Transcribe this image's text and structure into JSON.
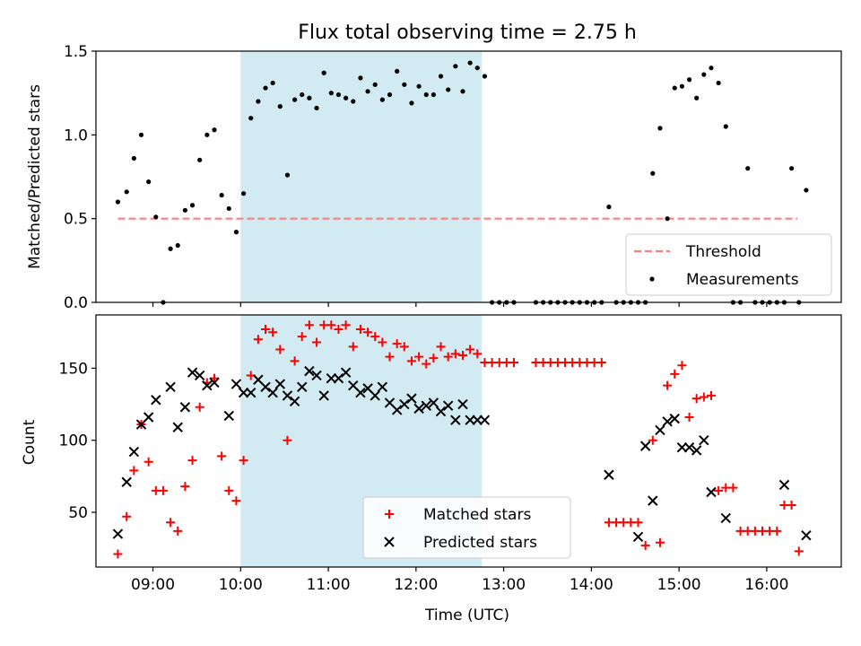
{
  "chart_data": [
    {
      "type": "scatter",
      "title": "Flux total observing time = 2.75 h",
      "ylabel": "Matched/Predicted stars",
      "xlabel": "",
      "xlim": [
        "08:21",
        "16:51"
      ],
      "ylim": [
        0,
        1.5
      ],
      "y_ticks": [
        "0.0",
        "0.5",
        "1.0",
        "1.5"
      ],
      "x_ticks": [
        "09:00",
        "10:00",
        "11:00",
        "12:00",
        "13:00",
        "14:00",
        "15:00",
        "16:00"
      ],
      "x_tick_labels_shown": false,
      "shaded_span": {
        "from": "10:00",
        "to": "12:45",
        "color": "#add8e6"
      },
      "legend_position": "lower right",
      "threshold": {
        "label": "Threshold",
        "value": 0.5,
        "from": "08:36",
        "to": "16:21",
        "color": "#ff7f7f",
        "style": "dashed"
      },
      "series": [
        {
          "name": "Measurements",
          "color": "#000000",
          "marker": "dot",
          "points": [
            [
              "08:36",
              0.6
            ],
            [
              "08:42",
              0.66
            ],
            [
              "08:47",
              0.86
            ],
            [
              "08:52",
              1.0
            ],
            [
              "08:57",
              0.72
            ],
            [
              "09:02",
              0.51
            ],
            [
              "09:07",
              0.0
            ],
            [
              "09:12",
              0.32
            ],
            [
              "09:17",
              0.34
            ],
            [
              "09:22",
              0.55
            ],
            [
              "09:27",
              0.58
            ],
            [
              "09:32",
              0.85
            ],
            [
              "09:37",
              1.0
            ],
            [
              "09:42",
              1.03
            ],
            [
              "09:47",
              0.64
            ],
            [
              "09:52",
              0.56
            ],
            [
              "09:57",
              0.42
            ],
            [
              "10:02",
              0.65
            ],
            [
              "10:07",
              1.1
            ],
            [
              "10:12",
              1.2
            ],
            [
              "10:17",
              1.28
            ],
            [
              "10:22",
              1.31
            ],
            [
              "10:27",
              1.17
            ],
            [
              "10:32",
              0.76
            ],
            [
              "10:37",
              1.21
            ],
            [
              "10:42",
              1.24
            ],
            [
              "10:47",
              1.22
            ],
            [
              "10:52",
              1.16
            ],
            [
              "10:57",
              1.37
            ],
            [
              "11:02",
              1.25
            ],
            [
              "11:07",
              1.24
            ],
            [
              "11:12",
              1.22
            ],
            [
              "11:17",
              1.2
            ],
            [
              "11:22",
              1.34
            ],
            [
              "11:27",
              1.26
            ],
            [
              "11:32",
              1.3
            ],
            [
              "11:37",
              1.21
            ],
            [
              "11:42",
              1.24
            ],
            [
              "11:47",
              1.38
            ],
            [
              "11:52",
              1.3
            ],
            [
              "11:57",
              1.19
            ],
            [
              "12:02",
              1.29
            ],
            [
              "12:07",
              1.24
            ],
            [
              "12:12",
              1.24
            ],
            [
              "12:17",
              1.35
            ],
            [
              "12:22",
              1.27
            ],
            [
              "12:27",
              1.41
            ],
            [
              "12:32",
              1.26
            ],
            [
              "12:37",
              1.43
            ],
            [
              "12:42",
              1.4
            ],
            [
              "12:47",
              1.35
            ],
            [
              "12:52",
              0.0
            ],
            [
              "12:57",
              0.0
            ],
            [
              "13:02",
              0.0
            ],
            [
              "13:07",
              0.0
            ],
            [
              "13:22",
              0.0
            ],
            [
              "13:27",
              0.0
            ],
            [
              "13:32",
              0.0
            ],
            [
              "13:37",
              0.0
            ],
            [
              "13:42",
              0.0
            ],
            [
              "13:47",
              0.0
            ],
            [
              "13:52",
              0.0
            ],
            [
              "13:57",
              0.0
            ],
            [
              "14:02",
              0.0
            ],
            [
              "14:07",
              0.0
            ],
            [
              "14:12",
              0.57
            ],
            [
              "14:17",
              0.0
            ],
            [
              "14:22",
              0.0
            ],
            [
              "14:27",
              0.0
            ],
            [
              "14:32",
              0.0
            ],
            [
              "14:37",
              0.0
            ],
            [
              "14:42",
              0.77
            ],
            [
              "14:47",
              1.04
            ],
            [
              "14:52",
              0.5
            ],
            [
              "14:57",
              1.28
            ],
            [
              "15:02",
              1.29
            ],
            [
              "15:07",
              1.33
            ],
            [
              "15:12",
              1.22
            ],
            [
              "15:17",
              1.36
            ],
            [
              "15:22",
              1.4
            ],
            [
              "15:27",
              1.31
            ],
            [
              "15:32",
              1.05
            ],
            [
              "15:37",
              0.0
            ],
            [
              "15:42",
              0.0
            ],
            [
              "15:47",
              0.8
            ],
            [
              "15:52",
              0.0
            ],
            [
              "15:57",
              0.0
            ],
            [
              "16:02",
              0.0
            ],
            [
              "16:07",
              0.0
            ],
            [
              "16:12",
              0.0
            ],
            [
              "16:17",
              0.8
            ],
            [
              "16:22",
              0.0
            ],
            [
              "16:27",
              0.67
            ]
          ]
        }
      ]
    },
    {
      "type": "scatter",
      "title": "",
      "ylabel": "Count",
      "xlabel": "Time (UTC)",
      "xlim": [
        "08:21",
        "16:51"
      ],
      "ylim": [
        12,
        187
      ],
      "y_ticks": [
        "50",
        "100",
        "150"
      ],
      "x_ticks": [
        "09:00",
        "10:00",
        "11:00",
        "12:00",
        "13:00",
        "14:00",
        "15:00",
        "16:00"
      ],
      "x_tick_labels_shown": true,
      "shaded_span": {
        "from": "10:00",
        "to": "12:45",
        "color": "#add8e6"
      },
      "legend_position": "lower center",
      "series": [
        {
          "name": "Matched stars",
          "color": "#ff0000",
          "marker": "plus",
          "points": [
            [
              "08:36",
              21
            ],
            [
              "08:42",
              47
            ],
            [
              "08:47",
              79
            ],
            [
              "08:52",
              111
            ],
            [
              "08:57",
              85
            ],
            [
              "09:02",
              65
            ],
            [
              "09:07",
              65
            ],
            [
              "09:12",
              43
            ],
            [
              "09:17",
              37
            ],
            [
              "09:22",
              68
            ],
            [
              "09:27",
              86
            ],
            [
              "09:32",
              123
            ],
            [
              "09:37",
              140
            ],
            [
              "09:42",
              143
            ],
            [
              "09:47",
              89
            ],
            [
              "09:52",
              65
            ],
            [
              "09:57",
              58
            ],
            [
              "10:02",
              86
            ],
            [
              "10:07",
              145
            ],
            [
              "10:12",
              170
            ],
            [
              "10:17",
              177
            ],
            [
              "10:22",
              175
            ],
            [
              "10:27",
              163
            ],
            [
              "10:32",
              100
            ],
            [
              "10:37",
              155
            ],
            [
              "10:42",
              172
            ],
            [
              "10:47",
              180
            ],
            [
              "10:52",
              168
            ],
            [
              "10:57",
              180
            ],
            [
              "11:02",
              180
            ],
            [
              "11:07",
              177
            ],
            [
              "11:12",
              180
            ],
            [
              "11:17",
              165
            ],
            [
              "11:22",
              177
            ],
            [
              "11:27",
              175
            ],
            [
              "11:32",
              172
            ],
            [
              "11:37",
              168
            ],
            [
              "11:42",
              158
            ],
            [
              "11:47",
              167
            ],
            [
              "11:52",
              165
            ],
            [
              "11:57",
              155
            ],
            [
              "12:02",
              158
            ],
            [
              "12:07",
              153
            ],
            [
              "12:12",
              157
            ],
            [
              "12:17",
              165
            ],
            [
              "12:22",
              158
            ],
            [
              "12:27",
              160
            ],
            [
              "12:32",
              159
            ],
            [
              "12:37",
              163
            ],
            [
              "12:42",
              160
            ],
            [
              "12:47",
              154
            ],
            [
              "12:52",
              154
            ],
            [
              "12:57",
              154
            ],
            [
              "13:02",
              154
            ],
            [
              "13:07",
              154
            ],
            [
              "13:22",
              154
            ],
            [
              "13:27",
              154
            ],
            [
              "13:32",
              154
            ],
            [
              "13:37",
              154
            ],
            [
              "13:42",
              154
            ],
            [
              "13:47",
              154
            ],
            [
              "13:52",
              154
            ],
            [
              "13:57",
              154
            ],
            [
              "14:02",
              154
            ],
            [
              "14:07",
              154
            ],
            [
              "14:12",
              43
            ],
            [
              "14:17",
              43
            ],
            [
              "14:22",
              43
            ],
            [
              "14:27",
              43
            ],
            [
              "14:32",
              43
            ],
            [
              "14:37",
              27
            ],
            [
              "14:42",
              100
            ],
            [
              "14:47",
              29
            ],
            [
              "14:52",
              138
            ],
            [
              "14:57",
              146
            ],
            [
              "15:02",
              152
            ],
            [
              "15:07",
              116
            ],
            [
              "15:12",
              129
            ],
            [
              "15:17",
              130
            ],
            [
              "15:22",
              131
            ],
            [
              "15:27",
              65
            ],
            [
              "15:32",
              67
            ],
            [
              "15:37",
              67
            ],
            [
              "15:42",
              37
            ],
            [
              "15:47",
              37
            ],
            [
              "15:52",
              37
            ],
            [
              "15:57",
              37
            ],
            [
              "16:02",
              37
            ],
            [
              "16:07",
              37
            ],
            [
              "16:12",
              55
            ],
            [
              "16:17",
              55
            ],
            [
              "16:22",
              23
            ]
          ]
        },
        {
          "name": "Predicted stars",
          "color": "#000000",
          "marker": "x",
          "points": [
            [
              "08:36",
              35
            ],
            [
              "08:42",
              71
            ],
            [
              "08:47",
              92
            ],
            [
              "08:52",
              111
            ],
            [
              "08:57",
              116
            ],
            [
              "09:02",
              128
            ],
            [
              "09:12",
              137
            ],
            [
              "09:17",
              109
            ],
            [
              "09:22",
              123
            ],
            [
              "09:27",
              147
            ],
            [
              "09:32",
              145
            ],
            [
              "09:37",
              138
            ],
            [
              "09:42",
              140
            ],
            [
              "09:52",
              117
            ],
            [
              "09:57",
              139
            ],
            [
              "10:02",
              133
            ],
            [
              "10:07",
              133
            ],
            [
              "10:12",
              142
            ],
            [
              "10:17",
              137
            ],
            [
              "10:22",
              133
            ],
            [
              "10:27",
              139
            ],
            [
              "10:32",
              131
            ],
            [
              "10:37",
              127
            ],
            [
              "10:42",
              137
            ],
            [
              "10:47",
              148
            ],
            [
              "10:52",
              145
            ],
            [
              "10:57",
              131
            ],
            [
              "11:02",
              143
            ],
            [
              "11:07",
              143
            ],
            [
              "11:12",
              147
            ],
            [
              "11:17",
              138
            ],
            [
              "11:22",
              133
            ],
            [
              "11:27",
              136
            ],
            [
              "11:32",
              131
            ],
            [
              "11:37",
              137
            ],
            [
              "11:42",
              126
            ],
            [
              "11:47",
              121
            ],
            [
              "11:52",
              125
            ],
            [
              "11:57",
              129
            ],
            [
              "12:02",
              122
            ],
            [
              "12:07",
              124
            ],
            [
              "12:12",
              126
            ],
            [
              "12:17",
              120
            ],
            [
              "12:22",
              124
            ],
            [
              "12:27",
              114
            ],
            [
              "12:32",
              125
            ],
            [
              "12:37",
              114
            ],
            [
              "12:42",
              114
            ],
            [
              "12:47",
              114
            ],
            [
              "14:12",
              76
            ],
            [
              "14:32",
              33
            ],
            [
              "14:37",
              96
            ],
            [
              "14:42",
              58
            ],
            [
              "14:47",
              107
            ],
            [
              "14:52",
              113
            ],
            [
              "14:57",
              115
            ],
            [
              "15:02",
              95
            ],
            [
              "15:07",
              95
            ],
            [
              "15:12",
              93
            ],
            [
              "15:17",
              100
            ],
            [
              "15:22",
              64
            ],
            [
              "15:32",
              46
            ],
            [
              "16:12",
              69
            ],
            [
              "16:27",
              34
            ]
          ]
        }
      ]
    }
  ]
}
